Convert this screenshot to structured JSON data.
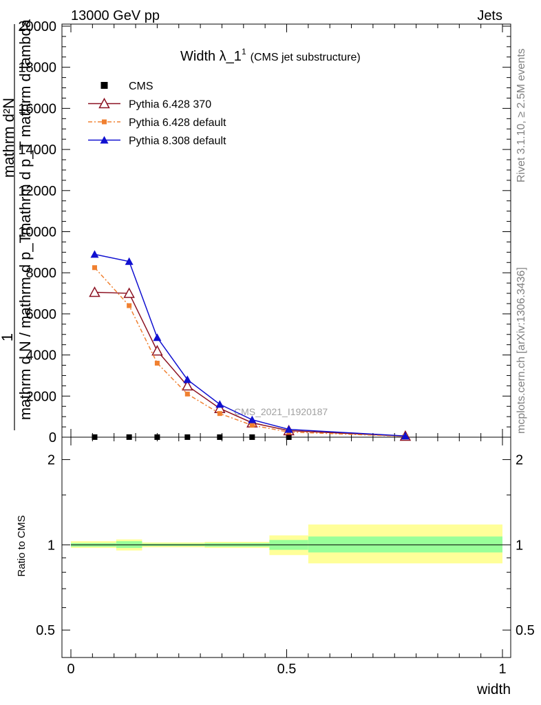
{
  "header": {
    "left": "13000 GeV pp",
    "right": "Jets"
  },
  "side_labels": {
    "rivet": "Rivet 3.1.10, ≥ 2.5M events",
    "mcplots": "mcplots.cern.ch [arXiv:1306.3436]"
  },
  "watermark": "CMS_2021_I1920187",
  "chart_data": [
    {
      "type": "line",
      "title": "Width λ_1¹ (CMS jet substructure)",
      "title_parts": {
        "main": "Width λ_1",
        "sup": "1",
        "sub": "(CMS jet substructure)"
      },
      "ylabel_parts": {
        "numerator": "1",
        "denominator": "mathrm d N / mathrm d p_T",
        "fraction_num": "mathrm d²N",
        "fraction_den": "mathrm d p_T mathrm d lambda"
      },
      "xlim": [
        0,
        1
      ],
      "ylim": [
        0,
        20000
      ],
      "y_ticks": [
        0,
        2000,
        4000,
        6000,
        8000,
        10000,
        12000,
        14000,
        16000,
        18000,
        20000
      ],
      "x": [
        0.055,
        0.135,
        0.2,
        0.27,
        0.345,
        0.42,
        0.505,
        0.775
      ],
      "series": [
        {
          "name": "CMS",
          "color": "#000000",
          "marker": "square",
          "line": "none",
          "values": [
            4,
            4,
            3,
            3,
            2,
            2,
            1,
            0.3
          ]
        },
        {
          "name": "Pythia 6.428 370",
          "color": "#8b1020",
          "marker": "open-triangle",
          "line": "solid",
          "values": [
            7050,
            7000,
            4200,
            2500,
            1400,
            700,
            320,
            50
          ]
        },
        {
          "name": "Pythia 6.428 default",
          "color": "#f08030",
          "marker": "square",
          "line": "dashdot",
          "values": [
            8250,
            6400,
            3600,
            2100,
            1150,
            580,
            250,
            40
          ]
        },
        {
          "name": "Pythia 8.308 default",
          "color": "#1010d0",
          "marker": "triangle",
          "line": "solid",
          "values": [
            8900,
            8550,
            4850,
            2800,
            1600,
            850,
            380,
            60
          ]
        }
      ],
      "legend_position": "top-left"
    },
    {
      "type": "area",
      "ylabel": "Ratio to CMS",
      "xlabel": "width",
      "xlim": [
        0,
        1
      ],
      "x_ticks": [
        "0",
        "0.5",
        "1"
      ],
      "y_ticks": [
        "0.5",
        "1",
        "2"
      ],
      "ylim": [
        0.4,
        2.4
      ],
      "log_y": true,
      "bins": [
        {
          "lo": 0.0,
          "hi": 0.105,
          "yellow": [
            0.975,
            1.03
          ],
          "green": [
            0.985,
            1.015
          ]
        },
        {
          "lo": 0.105,
          "hi": 0.165,
          "yellow": [
            0.955,
            1.045
          ],
          "green": [
            0.975,
            1.03
          ]
        },
        {
          "lo": 0.165,
          "hi": 0.31,
          "yellow": [
            0.98,
            1.02
          ],
          "green": [
            0.99,
            1.01
          ]
        },
        {
          "lo": 0.31,
          "hi": 0.46,
          "yellow": [
            0.975,
            1.025
          ],
          "green": [
            0.985,
            1.015
          ]
        },
        {
          "lo": 0.46,
          "hi": 0.55,
          "yellow": [
            0.92,
            1.08
          ],
          "green": [
            0.96,
            1.04
          ]
        },
        {
          "lo": 0.55,
          "hi": 1.0,
          "yellow": [
            0.86,
            1.18
          ],
          "green": [
            0.94,
            1.07
          ]
        }
      ],
      "band_colors": {
        "yellow": "#ffff99",
        "green": "#99ff99"
      }
    }
  ]
}
